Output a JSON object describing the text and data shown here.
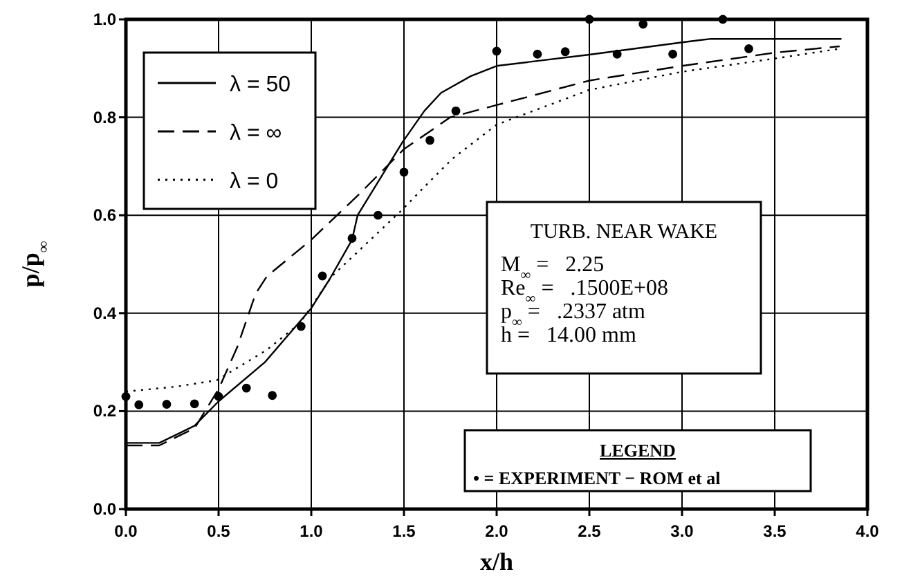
{
  "chart_data": {
    "type": "line",
    "xlabel": "x/h",
    "ylabel": "p/p$_{∞}$",
    "xlim": [
      0,
      4
    ],
    "xticks": [
      {
        "value": 0,
        "label": "0.0"
      },
      {
        "value": 0.5,
        "label": "0.5"
      },
      {
        "value": 1,
        "label": "1.0"
      },
      {
        "value": 1.5,
        "label": "1.5"
      },
      {
        "value": 2,
        "label": "2.0"
      },
      {
        "value": 2.5,
        "label": "2.5"
      },
      {
        "value": 3,
        "label": "3.0"
      },
      {
        "value": 3.5,
        "label": "3.5"
      },
      {
        "value": 4,
        "label": "4.0"
      }
    ],
    "ylim": [
      0,
      1
    ],
    "yticks": [
      {
        "value": 0,
        "label": "0.0"
      },
      {
        "value": 0.2,
        "label": "0.2"
      },
      {
        "value": 0.4,
        "label": "0.4"
      },
      {
        "value": 0.6,
        "label": "0.6"
      },
      {
        "value": 0.8,
        "label": "0.8"
      },
      {
        "value": 1,
        "label": "1.0"
      }
    ],
    "grid": true,
    "legend": "top left",
    "series": [
      {
        "name": "λ = 50",
        "color": "#000000",
        "line_style": "solid",
        "x": [
          0,
          0.18,
          0.37,
          0.5,
          0.75,
          1.0,
          1.1,
          1.22,
          1.25,
          1.49,
          1.61,
          1.7,
          1.86,
          2.0,
          2.5,
          3.0,
          3.15,
          3.86
        ],
        "values": [
          0.135,
          0.135,
          0.17,
          0.22,
          0.3,
          0.41,
          0.47,
          0.55,
          0.6,
          0.748,
          0.813,
          0.85,
          0.884,
          0.905,
          0.928,
          0.953,
          0.96,
          0.96
        ]
      },
      {
        "name": "λ = ∞",
        "color": "#000000",
        "line_style": "dashed",
        "x": [
          0,
          0.18,
          0.37,
          0.5,
          0.6,
          0.7,
          0.76,
          1.0,
          1.25,
          1.5,
          1.75,
          2.0,
          2.5,
          3.0,
          3.5,
          3.85
        ],
        "values": [
          0.13,
          0.13,
          0.165,
          0.245,
          0.33,
          0.44,
          0.475,
          0.55,
          0.64,
          0.735,
          0.8,
          0.825,
          0.875,
          0.905,
          0.932,
          0.945
        ]
      },
      {
        "name": "λ = 0",
        "color": "#000000",
        "line_style": "dotted",
        "x": [
          0,
          0.27,
          0.49,
          0.76,
          0.94,
          1.11,
          1.49,
          1.61,
          1.76,
          2.0,
          2.5,
          3.0,
          3.5,
          3.85
        ],
        "values": [
          0.24,
          0.25,
          0.263,
          0.325,
          0.38,
          0.475,
          0.611,
          0.658,
          0.715,
          0.785,
          0.856,
          0.893,
          0.92,
          0.94
        ]
      },
      {
        "type": "scatter",
        "marker": "circle",
        "color": "#000000",
        "x": [
          0,
          0.07,
          0.22,
          0.37,
          0.5,
          0.65,
          0.79,
          0.945,
          1.06,
          1.22,
          1.36,
          1.5,
          1.64,
          1.78,
          2.0,
          2.22,
          2.37,
          2.5,
          2.65,
          2.79,
          2.95,
          3.22,
          3.36
        ],
        "values": [
          0.23,
          0.213,
          0.214,
          0.215,
          0.23,
          0.247,
          0.232,
          0.373,
          0.476,
          0.553,
          0.6,
          0.688,
          0.753,
          0.813,
          0.935,
          0.929,
          0.934,
          1.0,
          0.929,
          0.99,
          0.929,
          1.0,
          0.94
        ]
      }
    ],
    "annotations": [
      "TURB. NEAR WAKE",
      "M$_{∞}$ =   2.25",
      "Re$_{∞}$ =   .1500E+08",
      "p$_{∞}$ =   .2337 atm",
      "h =   14.00 mm",
      "LEGEND",
      "• = EXPERIMENT − ROM et al"
    ]
  }
}
